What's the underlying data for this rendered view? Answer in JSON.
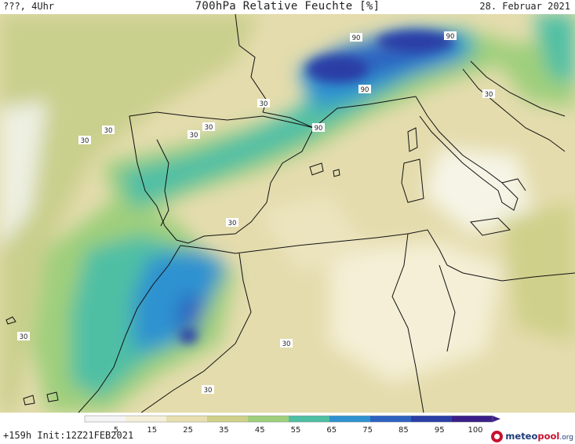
{
  "header": {
    "time_label": "???, 4Uhr",
    "title": "700hPa Relative Feuchte [%]",
    "date": "28. Februar 2021"
  },
  "footer": {
    "run_info": "+159h  Init:12Z21FEB2021"
  },
  "logo": {
    "part1": "meteo",
    "part2": "pool",
    "part3": ".org"
  },
  "colorbar": {
    "unit": "%",
    "ticks": [
      "5",
      "15",
      "25",
      "35",
      "45",
      "55",
      "65",
      "75",
      "85",
      "95",
      "100"
    ],
    "colors": [
      "#f4f4f4",
      "#f4efd9",
      "#e8dfb0",
      "#cfd08a",
      "#9fcf7c",
      "#4fbfa4",
      "#2f92d0",
      "#2d62c0",
      "#2a3ea6",
      "#3a1f88"
    ]
  },
  "contour_labels": [
    "90",
    "90",
    "90",
    "90",
    "30",
    "30",
    "30",
    "30",
    "30",
    "30",
    "30",
    "30",
    "30",
    "30"
  ]
}
